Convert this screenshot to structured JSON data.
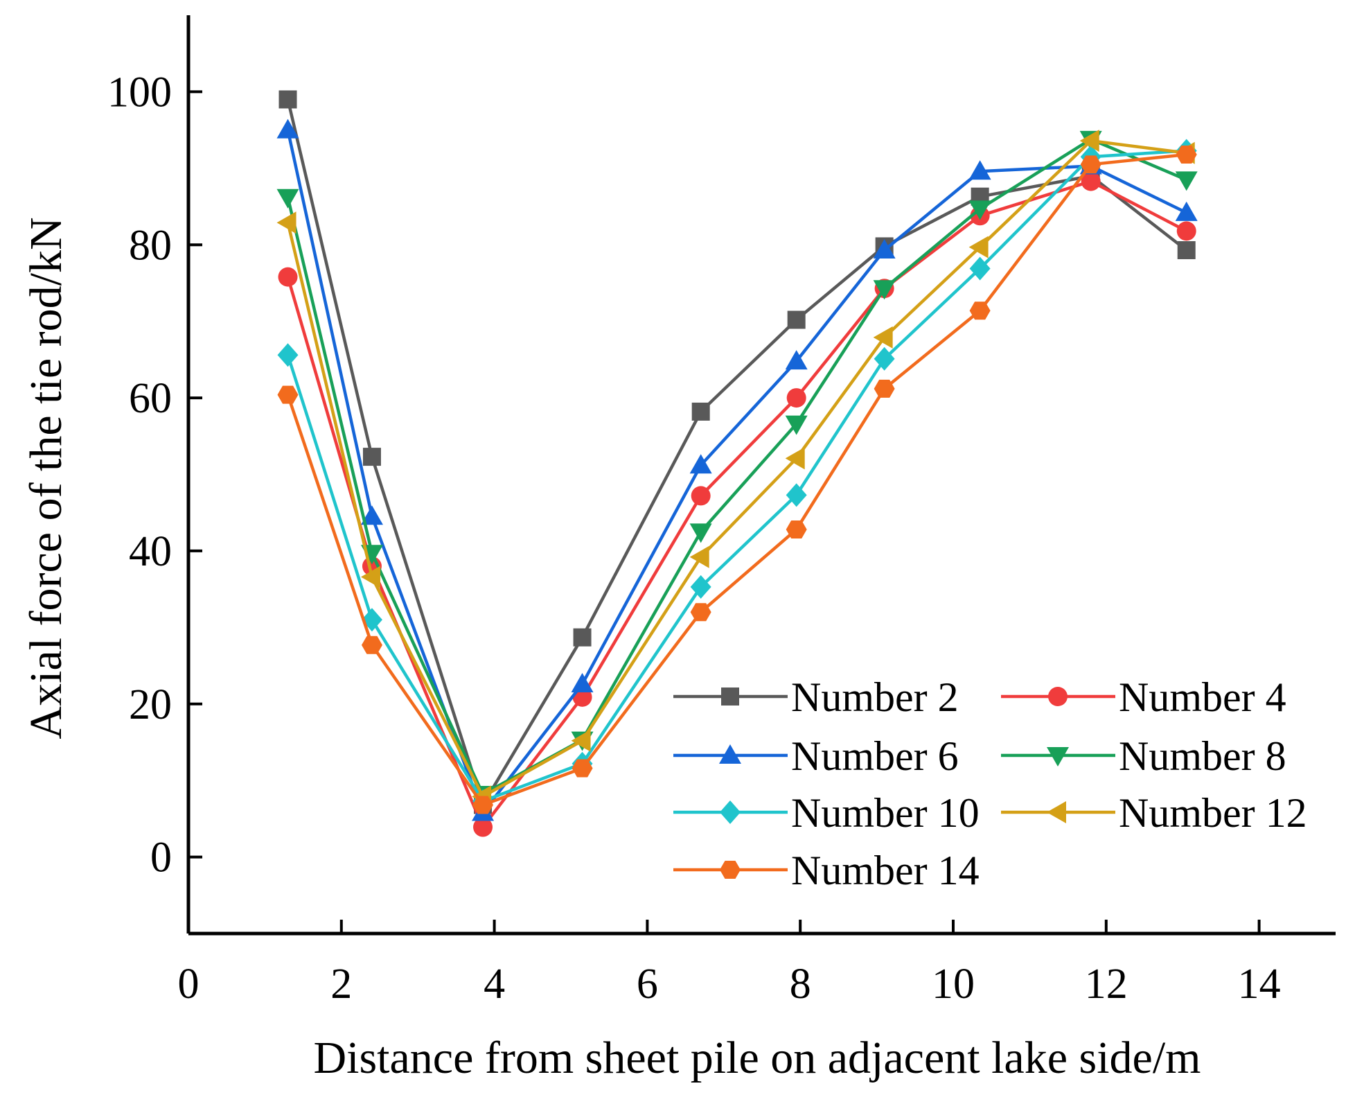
{
  "chart_data": {
    "type": "line",
    "title": "",
    "xlabel": "Distance from sheet pile on adjacent lake side/m",
    "ylabel": "Axial force of the tie rod/kN",
    "xlim": [
      0,
      15
    ],
    "ylim": [
      -10,
      110
    ],
    "xticks": [
      0,
      2,
      4,
      6,
      8,
      10,
      12,
      14
    ],
    "yticks": [
      0,
      20,
      40,
      60,
      80,
      100
    ],
    "xtick_labels": [
      "0",
      "2",
      "4",
      "6",
      "8",
      "10",
      "12",
      "14"
    ],
    "ytick_labels": [
      "0",
      "20",
      "40",
      "60",
      "80",
      "100"
    ],
    "x": [
      1.3,
      2.4,
      3.85,
      5.15,
      6.7,
      7.95,
      9.1,
      10.35,
      11.8,
      13.05
    ],
    "legend_position": "bottom-right",
    "series": [
      {
        "name": "Number 2",
        "color": "#595959",
        "marker": "square",
        "values": [
          99.0,
          52.3,
          6.8,
          28.7,
          58.2,
          70.2,
          79.8,
          86.3,
          89.0,
          79.3
        ]
      },
      {
        "name": "Number 4",
        "color": "#f03c3c",
        "marker": "circle",
        "values": [
          75.8,
          38.0,
          3.9,
          20.9,
          47.2,
          60.0,
          74.3,
          83.8,
          88.3,
          81.8
        ]
      },
      {
        "name": "Number 6",
        "color": "#1565d8",
        "marker": "triangle-up",
        "values": [
          95.0,
          44.5,
          5.8,
          22.6,
          51.2,
          64.8,
          79.3,
          89.6,
          90.3,
          84.2
        ]
      },
      {
        "name": "Number 8",
        "color": "#18a058",
        "marker": "triangle-down",
        "values": [
          86.2,
          39.7,
          8.2,
          15.3,
          42.5,
          56.6,
          74.3,
          84.7,
          93.8,
          88.5
        ]
      },
      {
        "name": "Number 10",
        "color": "#20c4cc",
        "marker": "diamond",
        "values": [
          65.6,
          31.0,
          7.3,
          12.2,
          35.3,
          47.3,
          65.1,
          76.9,
          91.5,
          92.3
        ]
      },
      {
        "name": "Number 12",
        "color": "#d4a017",
        "marker": "triangle-left",
        "values": [
          82.9,
          36.6,
          7.9,
          15.2,
          39.2,
          52.1,
          67.9,
          79.7,
          93.6,
          92.0
        ]
      },
      {
        "name": "Number 14",
        "color": "#f26b1d",
        "marker": "hexagon",
        "values": [
          60.4,
          27.7,
          6.8,
          11.6,
          32.0,
          42.8,
          61.2,
          71.4,
          90.5,
          91.8
        ]
      }
    ]
  }
}
